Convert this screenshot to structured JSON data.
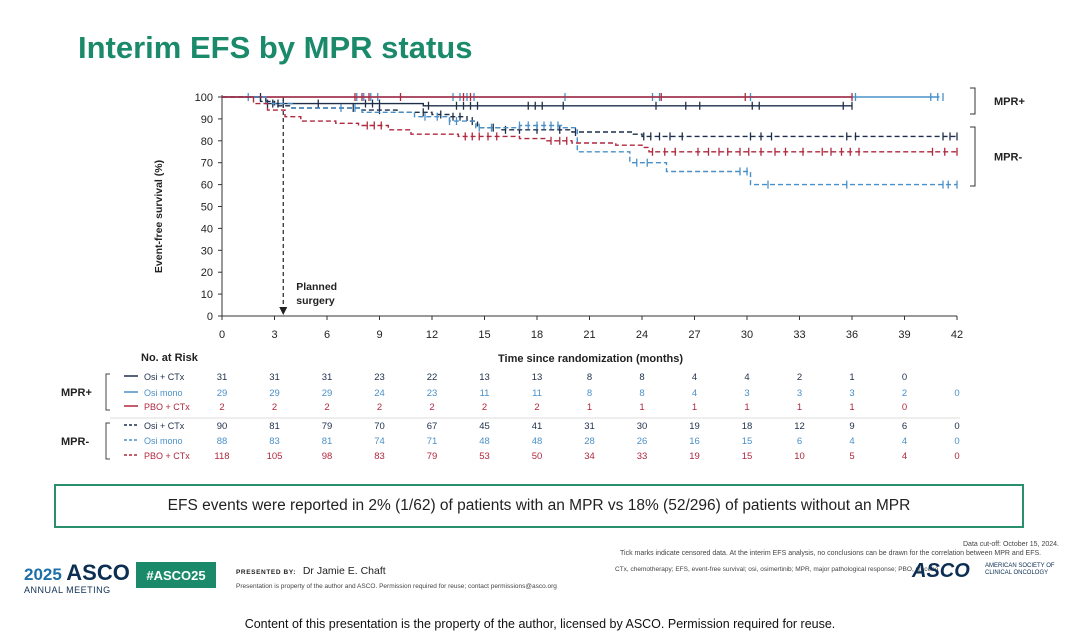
{
  "title": "Interim EFS by MPR status",
  "chart_data": {
    "type": "line",
    "subtype": "kaplan-meier step curves",
    "ylabel": "Event-free survival (%)",
    "xlabel": "Time since randomization (months)",
    "xlim": [
      0,
      42
    ],
    "ylim": [
      0,
      100
    ],
    "x_ticks": [
      0,
      3,
      6,
      9,
      12,
      15,
      18,
      21,
      24,
      27,
      30,
      33,
      36,
      39,
      42
    ],
    "y_ticks": [
      0,
      10,
      20,
      30,
      40,
      50,
      60,
      70,
      80,
      90,
      100
    ],
    "annotation": {
      "x": 3.5,
      "y_top": 100,
      "text_line1": "Planned",
      "text_line2": "surgery"
    },
    "group_labels": [
      "MPR+",
      "MPR-"
    ],
    "series": [
      {
        "name": "Osi + CTx",
        "group": "MPR+",
        "color": "#1e2f4a",
        "dash": false,
        "points": [
          [
            0,
            100
          ],
          [
            2.5,
            100
          ],
          [
            2.5,
            97
          ],
          [
            11.5,
            97
          ],
          [
            11.5,
            96
          ],
          [
            36,
            96
          ]
        ],
        "censored": [
          2.2,
          2.6,
          2.9,
          3.2,
          3.5,
          5.5,
          8.2,
          8.6,
          9,
          11.8,
          13.4,
          13.8,
          14.2,
          14.6,
          17.5,
          17.9,
          18.3,
          19.5,
          24.8,
          26.5,
          27.3,
          30.3,
          30.7,
          35.5,
          36
        ]
      },
      {
        "name": "Osi mono",
        "group": "MPR+",
        "color": "#4a90c8",
        "dash": false,
        "points": [
          [
            0,
            100
          ],
          [
            41,
            100
          ]
        ],
        "censored": [
          1.5,
          7.7,
          8.1,
          8.5,
          8.9,
          13.2,
          13.6,
          14.0,
          14.4,
          19.6,
          24.6,
          25.0,
          30.2,
          36.2,
          40.5,
          40.9,
          41.2
        ]
      },
      {
        "name": "PBO + CTx",
        "group": "MPR+",
        "color": "#b0283e",
        "dash": false,
        "points": [
          [
            0,
            100
          ],
          [
            36,
            100
          ]
        ],
        "censored": [
          7.6,
          8.0,
          8.4,
          10.2,
          13.8,
          14.2,
          25.1,
          29.9,
          36
        ]
      },
      {
        "name": "Osi + CTx",
        "group": "MPR-",
        "color": "#1e2f4a",
        "dash": true,
        "points": [
          [
            0,
            100
          ],
          [
            2.2,
            98
          ],
          [
            3,
            96
          ],
          [
            4,
            95
          ],
          [
            6,
            95
          ],
          [
            8,
            94
          ],
          [
            10,
            93
          ],
          [
            12,
            92
          ],
          [
            13,
            91
          ],
          [
            14,
            89
          ],
          [
            14.6,
            86
          ],
          [
            15,
            86
          ],
          [
            16,
            85
          ],
          [
            19.5,
            85
          ],
          [
            20,
            84
          ],
          [
            23.5,
            83
          ],
          [
            24,
            82
          ],
          [
            42,
            82
          ]
        ],
        "censored": [
          7.5,
          9,
          11.5,
          12.5,
          13.2,
          13.6,
          14.3,
          15.5,
          16.2,
          17,
          18,
          19.3,
          20.2,
          24.1,
          24.5,
          25,
          25.6,
          26.3,
          30.2,
          30.8,
          31.4,
          35.7,
          36.2,
          41.2,
          41.6,
          42
        ]
      },
      {
        "name": "Osi mono",
        "group": "MPR-",
        "color": "#4a90c8",
        "dash": true,
        "points": [
          [
            0,
            100
          ],
          [
            2.5,
            97
          ],
          [
            4,
            95
          ],
          [
            8,
            93
          ],
          [
            11,
            91
          ],
          [
            13,
            89
          ],
          [
            14.5,
            86
          ],
          [
            15.5,
            86
          ],
          [
            17,
            87
          ],
          [
            19.5,
            86
          ],
          [
            20.3,
            75
          ],
          [
            23,
            75
          ],
          [
            23.3,
            70
          ],
          [
            25,
            70
          ],
          [
            25.4,
            66
          ],
          [
            30.2,
            66
          ],
          [
            30.2,
            60
          ],
          [
            42,
            60
          ]
        ],
        "censored": [
          6.8,
          7.6,
          11.6,
          12.3,
          13,
          13.4,
          14.7,
          15.4,
          17,
          17.5,
          18,
          18.4,
          18.8,
          19.2,
          23.7,
          24.3,
          29.6,
          30,
          31.2,
          35.7,
          41.2,
          41.5,
          42
        ]
      },
      {
        "name": "PBO + CTx",
        "group": "MPR-",
        "color": "#b0283e",
        "dash": true,
        "points": [
          [
            0,
            100
          ],
          [
            1.8,
            97
          ],
          [
            2.6,
            94
          ],
          [
            3.6,
            91
          ],
          [
            4.5,
            89
          ],
          [
            6.5,
            88
          ],
          [
            7.8,
            87
          ],
          [
            9.5,
            85
          ],
          [
            10.8,
            83
          ],
          [
            13.5,
            82
          ],
          [
            17,
            81
          ],
          [
            18.5,
            80
          ],
          [
            20,
            79
          ],
          [
            22.5,
            78
          ],
          [
            24,
            77
          ],
          [
            24.4,
            75
          ],
          [
            42,
            75
          ]
        ],
        "censored": [
          8.3,
          8.7,
          9.1,
          13.9,
          14.3,
          14.7,
          15.2,
          15.7,
          18.8,
          19.3,
          19.7,
          24.6,
          25.3,
          25.9,
          27.2,
          27.8,
          28.4,
          28.9,
          29.6,
          30.1,
          30.8,
          31.6,
          32.2,
          33.2,
          34.3,
          34.8,
          35.4,
          35.9,
          36.4,
          40.6,
          41.3,
          42
        ]
      }
    ],
    "risk_table": {
      "header": "No. at Risk",
      "groups": [
        {
          "label": "MPR+",
          "rows": [
            {
              "name": "Osi + CTx",
              "color": "#1e2f4a",
              "dash": false,
              "values": [
                "31",
                "31",
                "31",
                "23",
                "22",
                "13",
                "13",
                "8",
                "8",
                "4",
                "4",
                "2",
                "1",
                "0",
                ""
              ]
            },
            {
              "name": "Osi mono",
              "color": "#4a90c8",
              "dash": false,
              "values": [
                "29",
                "29",
                "29",
                "24",
                "23",
                "11",
                "11",
                "8",
                "8",
                "4",
                "3",
                "3",
                "3",
                "2",
                "0"
              ]
            },
            {
              "name": "PBO + CTx",
              "color": "#b0283e",
              "dash": false,
              "values": [
                "2",
                "2",
                "2",
                "2",
                "2",
                "2",
                "2",
                "1",
                "1",
                "1",
                "1",
                "1",
                "1",
                "0",
                ""
              ]
            }
          ]
        },
        {
          "label": "MPR-",
          "rows": [
            {
              "name": "Osi + CTx",
              "color": "#1e2f4a",
              "dash": true,
              "values": [
                "90",
                "81",
                "79",
                "70",
                "67",
                "45",
                "41",
                "31",
                "30",
                "19",
                "18",
                "12",
                "9",
                "6",
                "0"
              ]
            },
            {
              "name": "Osi mono",
              "color": "#4a90c8",
              "dash": true,
              "values": [
                "88",
                "83",
                "81",
                "74",
                "71",
                "48",
                "48",
                "28",
                "26",
                "16",
                "15",
                "6",
                "4",
                "4",
                "0"
              ]
            },
            {
              "name": "PBO + CTx",
              "color": "#b0283e",
              "dash": true,
              "values": [
                "118",
                "105",
                "98",
                "83",
                "79",
                "53",
                "50",
                "34",
                "33",
                "19",
                "15",
                "10",
                "5",
                "4",
                "0"
              ]
            }
          ]
        }
      ]
    }
  },
  "callout_text": "EFS events were reported in 2% (1/62) of patients with an MPR vs 18% (52/296) of patients without an MPR",
  "notes": {
    "data_cutoff": "Data cut-off: October 15, 2024.",
    "tick_marks": "Tick marks indicate censored data. At the interim EFS analysis, no conclusions can be drawn for the correlation between MPR and EFS.",
    "abbrev": "CTx, chemotherapy; EFS, event-free survival; osi, osimertinib; MPR, major pathological response; PBO, placebo"
  },
  "footer": {
    "year": "2025",
    "asco": "ASCO",
    "meeting": "ANNUAL MEETING",
    "hashtag": "#ASCO25",
    "presented_by_label": "PRESENTED BY:",
    "presenter": "Dr Jamie E. Chaft",
    "property_note": "Presentation is property of the author and ASCO. Permission required for reuse; contact permissions@asco.org",
    "asco_right": "ASCO",
    "asco_right_sub": "AMERICAN SOCIETY OF CLINICAL ONCOLOGY",
    "bottom_note": "Content of this presentation is the property of the author, licensed by ASCO. Permission required for reuse."
  }
}
